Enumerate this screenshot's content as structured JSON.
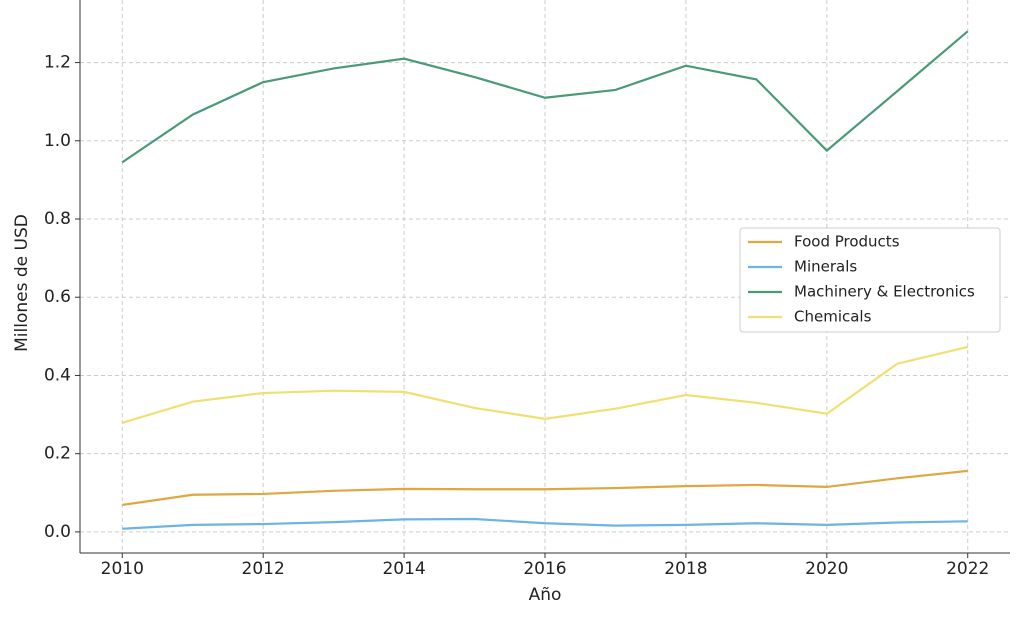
{
  "chart_data": {
    "type": "line",
    "x_label": "Año",
    "y_label": "Millones de USD",
    "x": [
      2010,
      2011,
      2012,
      2013,
      2014,
      2015,
      2016,
      2017,
      2018,
      2019,
      2020,
      2021,
      2022
    ],
    "series": [
      {
        "name": "Food Products",
        "color": "#e0a63f",
        "values": [
          0.069,
          0.095,
          0.097,
          0.105,
          0.11,
          0.109,
          0.109,
          0.112,
          0.117,
          0.12,
          0.115,
          0.137,
          0.156
        ]
      },
      {
        "name": "Minerals",
        "color": "#6cb4e4",
        "values": [
          0.008,
          0.018,
          0.02,
          0.025,
          0.032,
          0.033,
          0.022,
          0.016,
          0.018,
          0.022,
          0.018,
          0.024,
          0.027
        ]
      },
      {
        "name": "Machinery & Electronics",
        "color": "#4a9a78",
        "values": [
          0.945,
          1.067,
          1.15,
          1.185,
          1.21,
          1.163,
          1.11,
          1.13,
          1.192,
          1.157,
          0.975,
          1.127,
          1.28
        ]
      },
      {
        "name": "Chemicals",
        "color": "#f0e070",
        "values": [
          0.279,
          0.333,
          0.355,
          0.361,
          0.358,
          0.317,
          0.289,
          0.315,
          0.35,
          0.33,
          0.302,
          0.43,
          0.473
        ]
      }
    ],
    "xlim": [
      2009.4,
      2022.6
    ],
    "xticks": [
      2010,
      2012,
      2014,
      2016,
      2018,
      2020,
      2022
    ],
    "ylim": [
      -0.054,
      1.36
    ],
    "yticks": [
      {
        "value": 0,
        "label": "0.0"
      },
      0.2,
      0.4,
      0.6,
      0.8,
      {
        "value": 1,
        "label": "1.0"
      },
      1.2
    ],
    "grid": true,
    "legend": "center right"
  }
}
